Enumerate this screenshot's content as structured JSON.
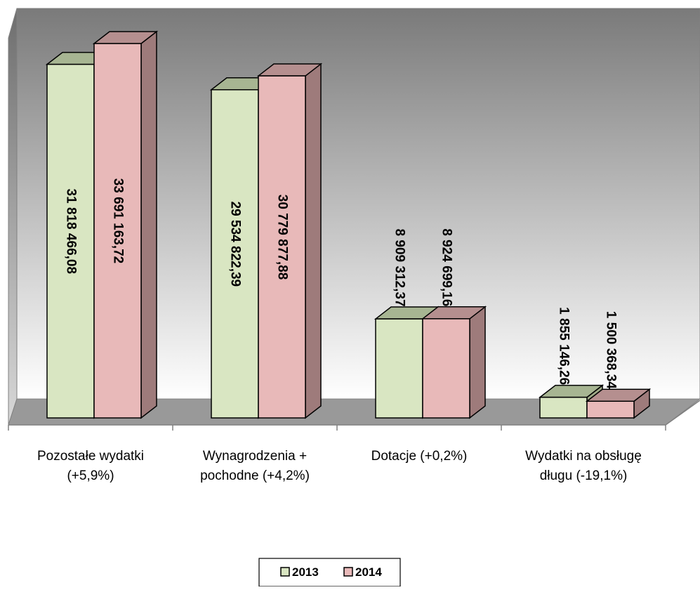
{
  "chart_data": {
    "type": "bar",
    "style": "3d-clustered-column",
    "categories": [
      [
        "Pozostałe wydatki",
        "(+5,9%)"
      ],
      [
        "Wynagrodzenia +",
        "pochodne (+4,2%)"
      ],
      [
        "Dotacje (+0,2%)"
      ],
      [
        "Wydatki na obsługę",
        "długu (-19,1%)"
      ]
    ],
    "series": [
      {
        "name": "2013",
        "values": [
          31818466.08,
          29534822.39,
          8909312.37,
          1855146.26
        ],
        "labels": [
          "31 818 466,08",
          "29 534 822,39",
          "8 909 312,37",
          "1 855 146,26"
        ],
        "color": "#d9e6c2",
        "side_color": "#9ea886"
      },
      {
        "name": "2014",
        "values": [
          33691163.72,
          30779877.88,
          8924699.16,
          1500368.34
        ],
        "labels": [
          "33 691 163,72",
          "30 779 877,88",
          "8 924 699,16",
          "1 500 368,34"
        ],
        "color": "#e8b9b9",
        "side_color": "#9e7b7b"
      }
    ],
    "ylim": [
      0,
      36000000
    ],
    "grid": false,
    "legend_position": "bottom",
    "wall_gradient": [
      "#7a7a7a",
      "#ffffff"
    ],
    "floor_color": "#999999"
  }
}
